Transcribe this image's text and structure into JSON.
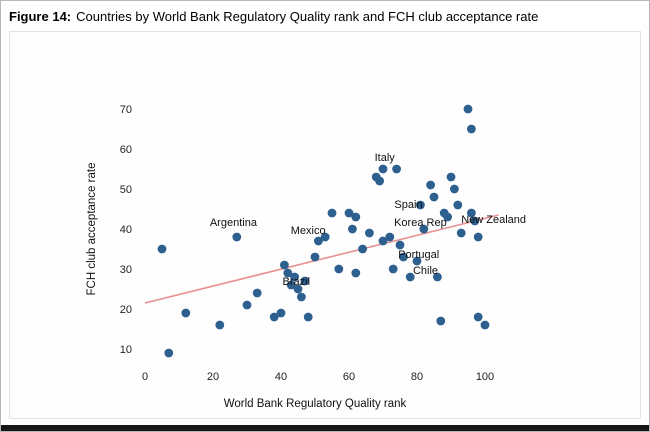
{
  "figure": {
    "label": "Figure 14:",
    "title": "Countries by World Bank Regulatory Quality rank and FCH club acceptance rate"
  },
  "chart_data": {
    "type": "scatter",
    "title": "Countries by World Bank Regulatory Quality rank and FCH club acceptance rate",
    "xlabel": "World Bank Regulatory Quality rank",
    "ylabel": "FCH club acceptance rate",
    "xlim": [
      0,
      110
    ],
    "ylim": [
      5,
      75
    ],
    "x_ticks": [
      0,
      20,
      40,
      60,
      80,
      100
    ],
    "y_ticks": [
      10,
      20,
      30,
      40,
      50,
      60,
      70
    ],
    "grid": false,
    "legend": false,
    "dot_color": "#2d5f8f",
    "trend_color": "#e89090",
    "trend_line": {
      "x1": 0,
      "y1": 21.5,
      "x2": 104,
      "y2": 43.5
    },
    "points": [
      [
        5,
        35
      ],
      [
        7,
        9
      ],
      [
        12,
        19
      ],
      [
        22,
        16
      ],
      [
        27,
        38
      ],
      [
        30,
        21
      ],
      [
        33,
        24
      ],
      [
        38,
        18
      ],
      [
        40,
        19
      ],
      [
        41,
        31
      ],
      [
        42,
        29
      ],
      [
        43,
        26
      ],
      [
        44,
        28
      ],
      [
        45,
        25
      ],
      [
        46,
        23
      ],
      [
        47,
        27
      ],
      [
        48,
        18
      ],
      [
        50,
        33
      ],
      [
        51,
        37
      ],
      [
        53,
        38
      ],
      [
        55,
        44
      ],
      [
        57,
        30
      ],
      [
        60,
        44
      ],
      [
        61,
        40
      ],
      [
        62,
        43
      ],
      [
        62,
        29
      ],
      [
        64,
        35
      ],
      [
        66,
        39
      ],
      [
        68,
        53
      ],
      [
        69,
        52
      ],
      [
        70,
        55
      ],
      [
        70,
        37
      ],
      [
        72,
        38
      ],
      [
        73,
        30
      ],
      [
        74,
        55
      ],
      [
        75,
        36
      ],
      [
        76,
        33
      ],
      [
        78,
        28
      ],
      [
        80,
        32
      ],
      [
        81,
        46
      ],
      [
        82,
        40
      ],
      [
        84,
        51
      ],
      [
        85,
        48
      ],
      [
        86,
        28
      ],
      [
        87,
        17
      ],
      [
        88,
        44
      ],
      [
        89,
        43
      ],
      [
        90,
        53
      ],
      [
        91,
        50
      ],
      [
        92,
        46
      ],
      [
        93,
        39
      ],
      [
        95,
        70
      ],
      [
        96,
        65
      ],
      [
        96,
        44
      ],
      [
        97,
        42
      ],
      [
        98,
        38
      ],
      [
        98,
        18
      ],
      [
        100,
        16
      ]
    ],
    "labels": [
      {
        "text": "Argentina",
        "x": 26,
        "y": 40.7,
        "anchor": "middle"
      },
      {
        "text": "Mexico",
        "x": 48,
        "y": 38.7,
        "anchor": "middle"
      },
      {
        "text": "Brazil",
        "x": 44.5,
        "y": 26.0,
        "anchor": "middle"
      },
      {
        "text": "Italy",
        "x": 70.5,
        "y": 57.0,
        "anchor": "middle"
      },
      {
        "text": "Spain",
        "x": 77.5,
        "y": 45.3,
        "anchor": "middle"
      },
      {
        "text": "Korea Rep",
        "x": 81,
        "y": 40.8,
        "anchor": "middle"
      },
      {
        "text": "New Zealand",
        "x": 93,
        "y": 41.5,
        "anchor": "start"
      },
      {
        "text": "Portugal",
        "x": 80.5,
        "y": 32.8,
        "anchor": "middle"
      },
      {
        "text": "Chile",
        "x": 82.5,
        "y": 28.8,
        "anchor": "middle"
      }
    ]
  }
}
